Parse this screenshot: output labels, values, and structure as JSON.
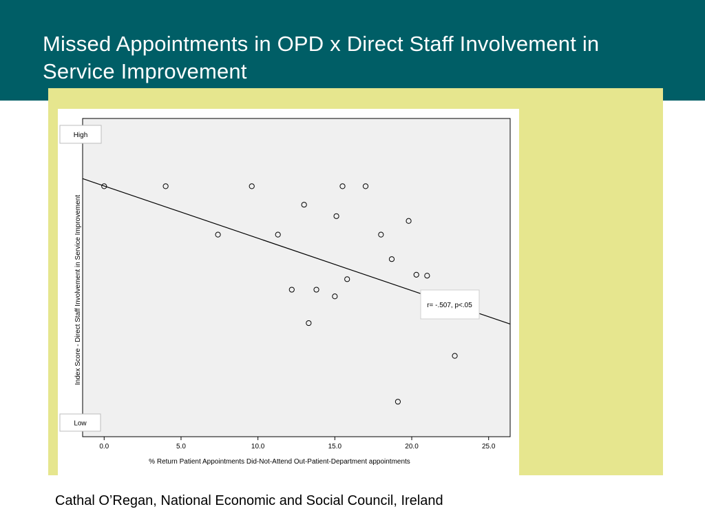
{
  "slide": {
    "title": "Missed Appointments in OPD x Direct Staff Involvement in Service Improvement",
    "credit": "Cathal O’Regan, National Economic and Social Council, Ireland"
  },
  "colors": {
    "header": "#005e66",
    "accent_panel": "#e6e68e",
    "plot_background": "#f0f0f0"
  },
  "chart_data": {
    "type": "scatter",
    "xlabel": "% Return Patient Appointments Did-Not-Attend Out-Patient-Department appointments",
    "ylabel": "Index Score - Direct Staff Involvement in Service Improvement",
    "xlim": [
      -1.4,
      26.4
    ],
    "ylim": [
      0,
      100
    ],
    "x_ticks": [
      0,
      5,
      10,
      15,
      20,
      25
    ],
    "x_tick_labels": [
      "0.0",
      "5.0",
      "10.0",
      "15.0",
      "20.0",
      "25.0"
    ],
    "y_label_high": "High",
    "y_label_low": "Low",
    "annotation": "r= -.507, p<.05",
    "grid": false,
    "points": [
      {
        "x": 0.0,
        "y": 78.7
      },
      {
        "x": 4.0,
        "y": 78.7
      },
      {
        "x": 9.6,
        "y": 78.7
      },
      {
        "x": 15.5,
        "y": 78.7
      },
      {
        "x": 17.0,
        "y": 78.7
      },
      {
        "x": 13.0,
        "y": 72.9
      },
      {
        "x": 15.1,
        "y": 69.3
      },
      {
        "x": 19.8,
        "y": 67.8
      },
      {
        "x": 7.4,
        "y": 63.5
      },
      {
        "x": 11.3,
        "y": 63.5
      },
      {
        "x": 18.0,
        "y": 63.5
      },
      {
        "x": 18.7,
        "y": 55.8
      },
      {
        "x": 20.3,
        "y": 50.9
      },
      {
        "x": 21.0,
        "y": 50.6
      },
      {
        "x": 15.8,
        "y": 49.5
      },
      {
        "x": 12.2,
        "y": 46.2
      },
      {
        "x": 13.8,
        "y": 46.2
      },
      {
        "x": 15.0,
        "y": 44.1
      },
      {
        "x": 13.3,
        "y": 35.7
      },
      {
        "x": 22.8,
        "y": 25.4
      },
      {
        "x": 19.1,
        "y": 11.0
      }
    ],
    "fit_line": {
      "x": [
        -1.4,
        26.4
      ],
      "y": [
        81.1,
        35.4
      ]
    }
  }
}
